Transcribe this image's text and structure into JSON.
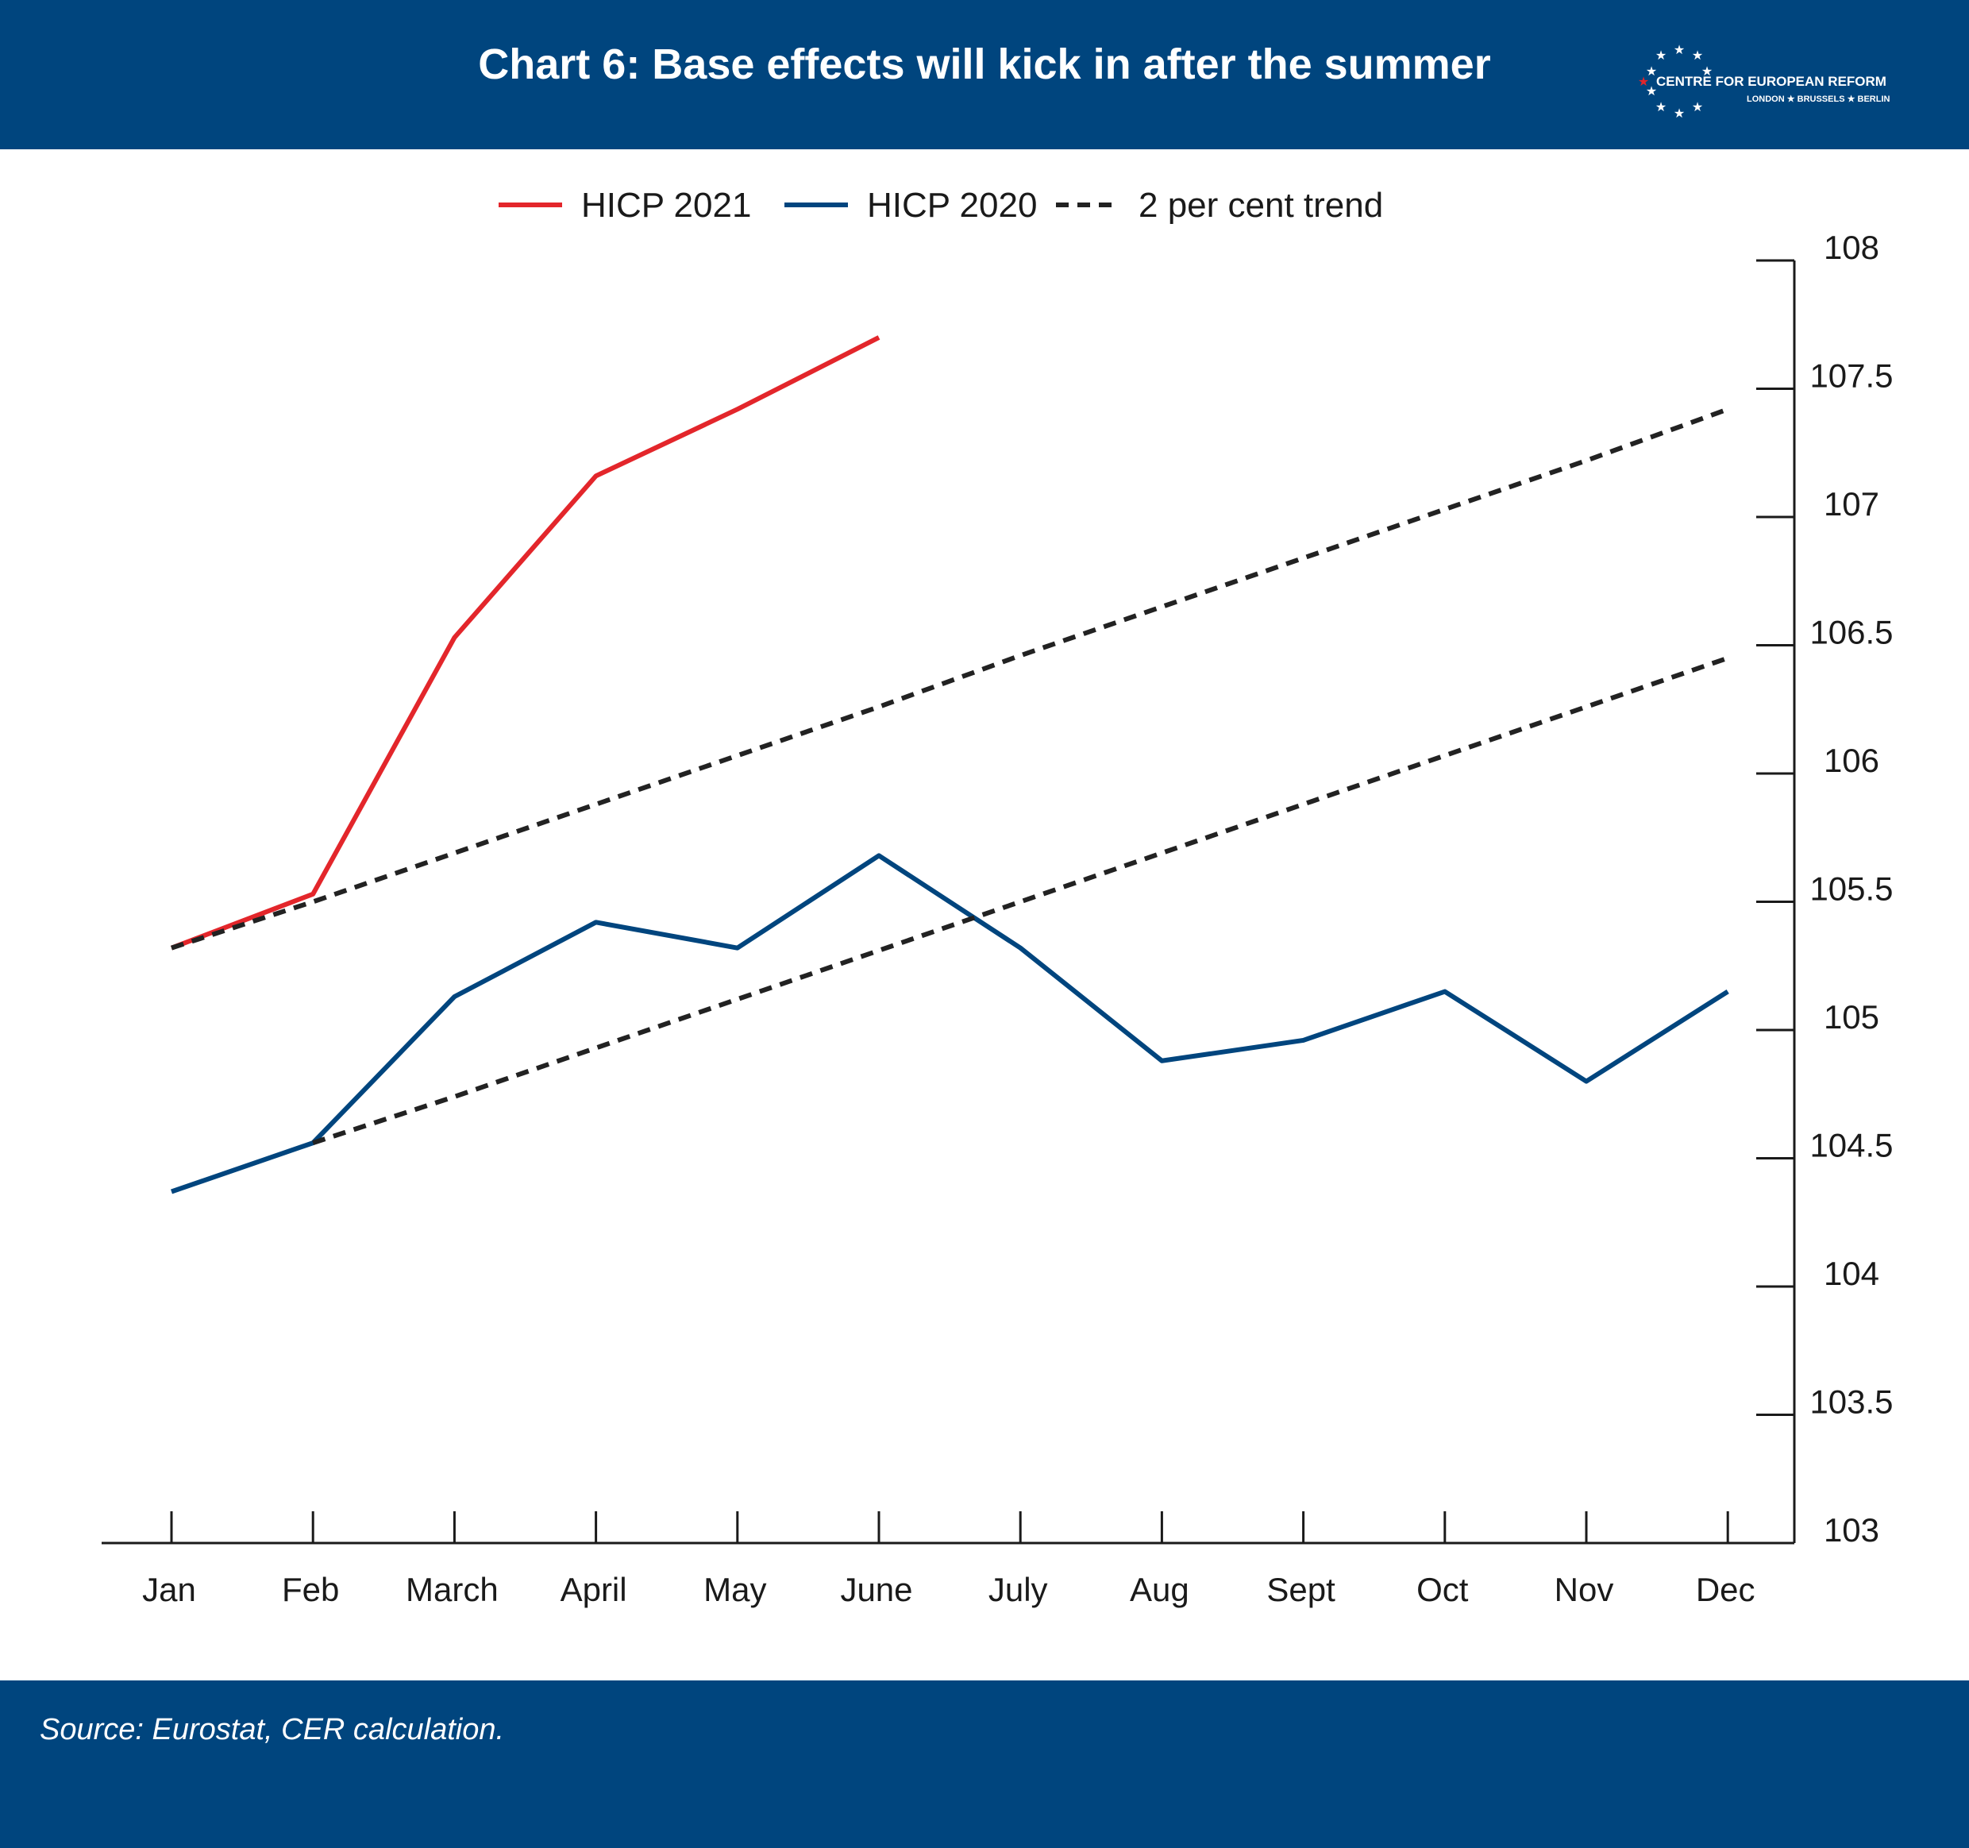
{
  "header": {
    "title": "Chart 6: Base effects will kick in after the summer",
    "logo_name": "CENTRE FOR EUROPEAN REFORM",
    "logo_cities": "LONDON ★ BRUSSELS ★ BERLIN"
  },
  "footer": {
    "source": "Source: Eurostat, CER calculation."
  },
  "colors": {
    "banner": "#00457e",
    "hicp_2021": "#e3262b",
    "hicp_2020": "#00457e",
    "trend": "#222222"
  },
  "chart_data": {
    "type": "line",
    "title": "",
    "xlabel": "",
    "ylabel": "",
    "categories": [
      "Jan",
      "Feb",
      "March",
      "April",
      "May",
      "June",
      "July",
      "Aug",
      "Sept",
      "Oct",
      "Nov",
      "Dec"
    ],
    "y_axis": {
      "position": "right",
      "ylim": [
        103,
        108
      ],
      "ticks": [
        103,
        103.5,
        104,
        104.5,
        105,
        105.5,
        106,
        106.5,
        107,
        107.5,
        108
      ]
    },
    "legend": {
      "placement": "top-center",
      "entries": [
        "HICP 2021",
        "HICP 2020",
        "2 per cent trend"
      ]
    },
    "grid": false,
    "series": [
      {
        "name": "HICP 2021",
        "style": "solid",
        "color": "#e3262b",
        "values": [
          105.32,
          105.53,
          106.53,
          107.16,
          107.42,
          107.7,
          null,
          null,
          null,
          null,
          null,
          null
        ]
      },
      {
        "name": "HICP 2020",
        "style": "solid",
        "color": "#00457e",
        "values": [
          104.37,
          104.56,
          105.13,
          105.42,
          105.32,
          105.68,
          105.32,
          104.88,
          104.96,
          105.15,
          104.8,
          105.15
        ]
      },
      {
        "name": "2 per cent trend",
        "style": "dashed",
        "color": "#222222",
        "values": [
          105.32,
          105.5,
          105.69,
          105.88,
          106.07,
          106.26,
          106.46,
          106.65,
          106.84,
          107.03,
          107.22,
          107.42
        ]
      },
      {
        "name": "2 per cent trend",
        "style": "dashed",
        "color": "#222222",
        "values": [
          null,
          104.56,
          104.74,
          104.93,
          105.12,
          105.31,
          105.5,
          105.69,
          105.88,
          106.07,
          106.26,
          106.45
        ]
      }
    ]
  }
}
